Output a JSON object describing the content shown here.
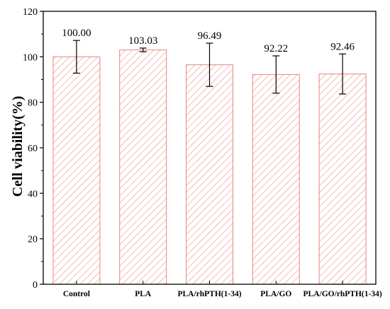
{
  "chart_data": {
    "type": "bar",
    "title": "",
    "xlabel": "",
    "ylabel": "Cell viability(%)",
    "ylim": [
      0,
      120
    ],
    "yticks": [
      0,
      20,
      40,
      60,
      80,
      100,
      120
    ],
    "grid": false,
    "categories": [
      "Control",
      "PLA",
      "PLA/rhPTH(1-34)",
      "PLA/GO",
      "PLA/GO/rhPTH(1-34)"
    ],
    "values": [
      100.0,
      103.03,
      96.49,
      92.22,
      92.46
    ],
    "error": [
      7.2,
      0.8,
      9.5,
      8.2,
      8.8
    ],
    "data_labels": [
      "100.00",
      "103.03",
      "96.49",
      "92.22",
      "92.46"
    ],
    "bar_style": {
      "fill": "#ffffff",
      "hatch_color": "#e8867f",
      "edge_color": "#e8867f",
      "pattern": "diagonal-hatch"
    }
  }
}
